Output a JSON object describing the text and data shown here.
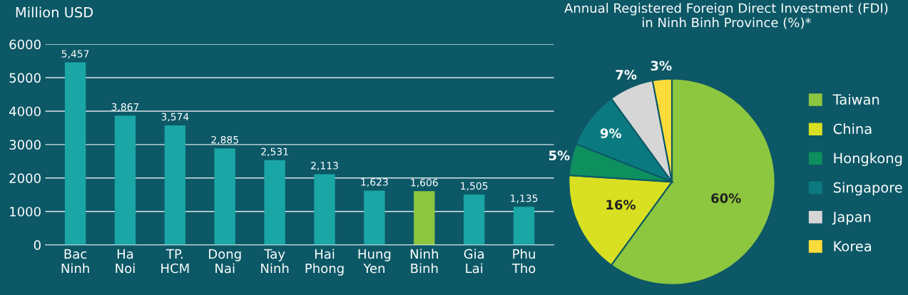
{
  "chart_data": [
    {
      "type": "bar",
      "ylabel": "Million USD",
      "categories": [
        "Bac\nNinh",
        "Ha\nNoi",
        "TP.\nHCM",
        "Dong\nNai",
        "Tay\nNinh",
        "Hai\nPhong",
        "Hung\nYen",
        "Ninh\nBinh",
        "Gia\nLai",
        "Phu\nTho"
      ],
      "values": [
        5457,
        3867,
        3574,
        2885,
        2531,
        2113,
        1623,
        1606,
        1505,
        1135
      ],
      "colors": [
        "#1ba6a6",
        "#1ba6a6",
        "#1ba6a6",
        "#1ba6a6",
        "#1ba6a6",
        "#1ba6a6",
        "#1ba6a6",
        "#8dc63f",
        "#1ba6a6",
        "#1ba6a6"
      ],
      "value_labels": [
        "5,457",
        "3,867",
        "3,574",
        "2,885",
        "2,531",
        "2,113",
        "1,623",
        "1,606",
        "1,505",
        "1,135"
      ],
      "ylim": [
        0,
        6000
      ],
      "yticks": [
        0,
        1000,
        2000,
        3000,
        4000,
        5000,
        6000
      ],
      "grid": "y"
    },
    {
      "type": "pie",
      "title": "Annual Registered Foreign Direct Investment (FDI)\nin Ninh Binh Province (%)*",
      "categories": [
        "Taiwan",
        "China",
        "Hongkong",
        "Singapore",
        "Japan",
        "Korea"
      ],
      "values": [
        60,
        16,
        5,
        9,
        7,
        3
      ],
      "colors": [
        "#8dc63f",
        "#d9e021",
        "#0e8f5e",
        "#0b7a80",
        "#d6d6d6",
        "#fcdc3b"
      ],
      "value_labels": [
        "60%",
        "16%",
        "5%",
        "9%",
        "7%",
        "3%"
      ],
      "legend": "right"
    }
  ]
}
